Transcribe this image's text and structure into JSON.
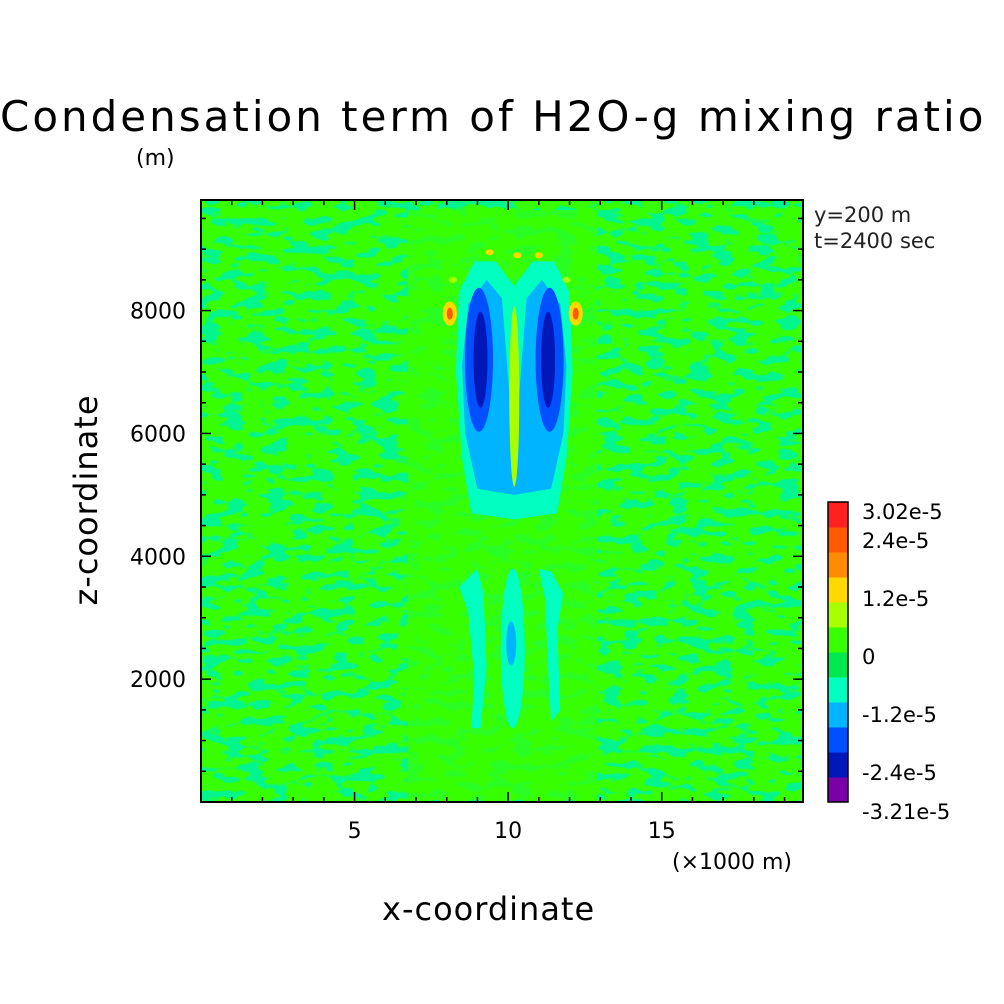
{
  "chart_data": {
    "type": "heatmap",
    "title": "Condensation term of H2O-g mixing ratio",
    "unit_note": "(m)",
    "info": [
      "y=200 m",
      "t=2400 sec"
    ],
    "xlabel": "x-coordinate",
    "xscale_note": "(×1000 m)",
    "ylabel": "z-coordinate",
    "xlim": [
      0,
      19.6
    ],
    "ylim": [
      0,
      9800
    ],
    "xticks": [
      5,
      10,
      15
    ],
    "yticks": [
      2000,
      4000,
      6000,
      8000
    ],
    "background_value": 0,
    "colorbar": {
      "levels": [
        -3.21e-05,
        -2.4e-05,
        -1.2e-05,
        0,
        1.2e-05,
        2.4e-05,
        3.02e-05
      ],
      "labels": [
        "3.02e-5",
        "2.4e-5",
        "1.2e-5",
        "0",
        "-1.2e-5",
        "-2.4e-5",
        "-3.21e-5"
      ],
      "colors_bottom_to_top": [
        "#7a00a8",
        "#0018b8",
        "#0050ff",
        "#00b4ff",
        "#00ffc0",
        "#00e850",
        "#38ff00",
        "#a8ff00",
        "#ffd800",
        "#ff8c00",
        "#ff5a00",
        "#ff2020"
      ]
    },
    "features": [
      {
        "desc": "upper negative plume left",
        "x": 9.0,
        "z": 7200,
        "value": -3e-05
      },
      {
        "desc": "upper negative plume right",
        "x": 11.4,
        "z": 7200,
        "value": -3e-05
      },
      {
        "desc": "upper plume envelope",
        "x": 10.2,
        "z": 6500,
        "value": -1.2e-05
      },
      {
        "desc": "central positive streak",
        "x": 10.2,
        "z": 6600,
        "value": 1e-05
      },
      {
        "desc": "positive spot left",
        "x": 8.1,
        "z": 7950,
        "value": 2e-05
      },
      {
        "desc": "positive spot right",
        "x": 12.2,
        "z": 7950,
        "value": 2e-05
      },
      {
        "desc": "lower negative column left",
        "x": 8.8,
        "z": 2400,
        "value": -1e-05
      },
      {
        "desc": "lower negative column right",
        "x": 11.3,
        "z": 2600,
        "value": -1e-05
      },
      {
        "desc": "lower central spot",
        "x": 10.1,
        "z": 2600,
        "value": -1.3e-05
      }
    ]
  }
}
